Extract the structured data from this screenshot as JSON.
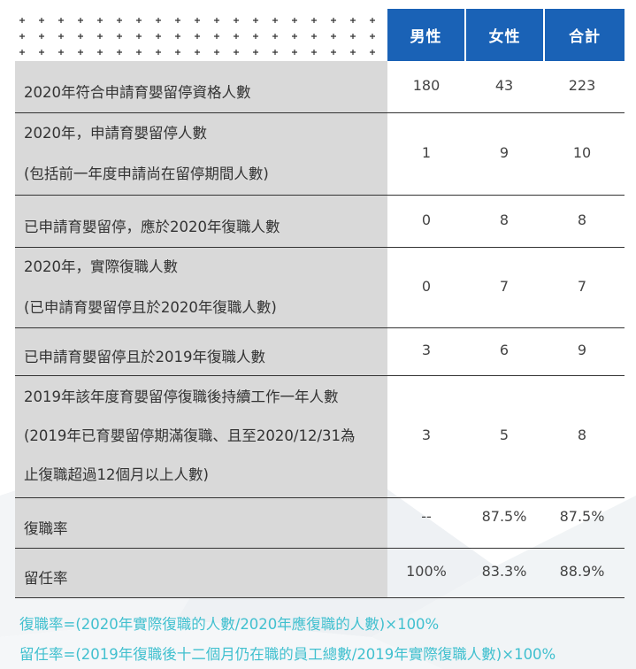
{
  "header": {
    "col_male": "男性",
    "col_female": "女性",
    "col_total": "合計"
  },
  "rows": [
    {
      "lines": [
        "2020年符合申請育嬰留停資格人數"
      ],
      "male": "180",
      "female": "43",
      "total": "223"
    },
    {
      "lines": [
        "2020年，申請育嬰留停人數",
        "(包括前一年度申請尚在留停期間人數)"
      ],
      "male": "1",
      "female": "9",
      "total": "10"
    },
    {
      "lines": [
        "已申請育嬰留停，應於2020年復職人數"
      ],
      "male": "0",
      "female": "8",
      "total": "8"
    },
    {
      "lines": [
        "2020年，實際復職人數",
        "(已申請育嬰留停且於2020年復職人數)"
      ],
      "male": "0",
      "female": "7",
      "total": "7"
    },
    {
      "lines": [
        "已申請育嬰留停且於2019年復職人數"
      ],
      "male": "3",
      "female": "6",
      "total": "9"
    },
    {
      "lines": [
        "2019年該年度育嬰留停復職後持續工作一年人數",
        "(2019年已育嬰留停期滿復職、且至2020/12/31為",
        "止復職超過12個月以上人數)"
      ],
      "male": "3",
      "female": "5",
      "total": "8"
    },
    {
      "lines": [
        "復職率"
      ],
      "male": "--",
      "female": "87.5%",
      "total": "87.5%"
    },
    {
      "lines": [
        "留任率"
      ],
      "male": "100%",
      "female": "83.3%",
      "total": "88.9%"
    }
  ],
  "formulas": [
    "復職率=(2020年實際復職的人數/2020年應復職的人數)×100%",
    "留任率=(2019年復職後十二個月仍在職的員工總數/2019年實際復職人數)×100%"
  ],
  "colors": {
    "header_bg": "#1a62b6",
    "label_bg": "#d9d9d9",
    "formula_text": "#41c0cf"
  }
}
